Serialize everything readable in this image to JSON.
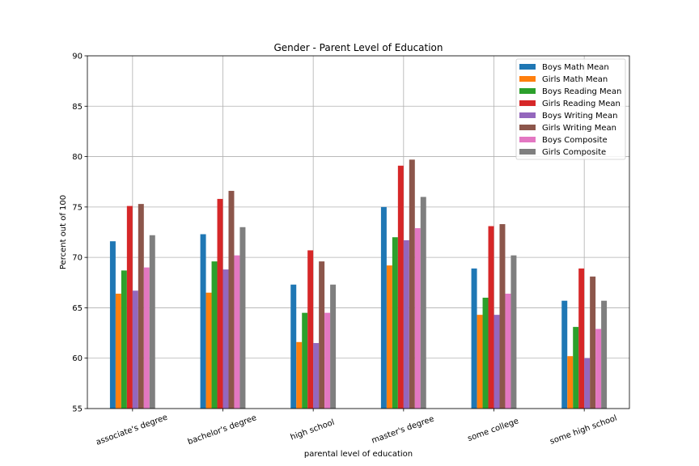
{
  "chart_data": {
    "type": "bar",
    "title": "Gender - Parent Level of Education",
    "xlabel": "parental level of education",
    "ylabel": "Percent out of 100",
    "ylim": [
      55,
      90
    ],
    "yticks": [
      55,
      60,
      65,
      70,
      75,
      80,
      85,
      90
    ],
    "grid": true,
    "legend_position": "top-right",
    "categories": [
      "associate's degree",
      "bachelor's degree",
      "high school",
      "master's degree",
      "some college",
      "some high school"
    ],
    "series": [
      {
        "name": "Boys Math Mean",
        "color": "#1f77b4",
        "values": [
          71.6,
          72.3,
          67.3,
          75.0,
          68.9,
          65.7
        ]
      },
      {
        "name": "Girls Math Mean",
        "color": "#ff7f0e",
        "values": [
          66.4,
          66.5,
          61.6,
          69.2,
          64.3,
          60.2
        ]
      },
      {
        "name": "Boys Reading Mean",
        "color": "#2ca02c",
        "values": [
          68.7,
          69.6,
          64.5,
          72.0,
          66.0,
          63.1
        ]
      },
      {
        "name": "Girls Reading Mean",
        "color": "#d62728",
        "values": [
          75.1,
          75.8,
          70.7,
          79.1,
          73.1,
          68.9
        ]
      },
      {
        "name": "Boys Writing Mean",
        "color": "#9467bd",
        "values": [
          66.7,
          68.8,
          61.5,
          71.7,
          64.3,
          60.0
        ]
      },
      {
        "name": "Girls Writing Mean",
        "color": "#8c564b",
        "values": [
          75.3,
          76.6,
          69.6,
          79.7,
          73.3,
          68.1
        ]
      },
      {
        "name": "Boys Composite",
        "color": "#e377c2",
        "values": [
          69.0,
          70.2,
          64.5,
          72.9,
          66.4,
          62.9
        ]
      },
      {
        "name": "Girls Composite",
        "color": "#7f7f7f",
        "values": [
          72.2,
          73.0,
          67.3,
          76.0,
          70.2,
          65.7
        ]
      }
    ]
  }
}
